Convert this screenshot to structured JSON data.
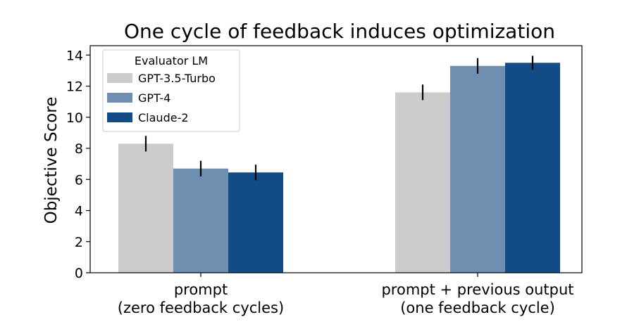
{
  "chart_data": {
    "type": "bar",
    "title": "One cycle of feedback induces optimization",
    "xlabel": "",
    "ylabel": "Objective Score",
    "ylim": [
      0,
      14.6
    ],
    "yticks": [
      0,
      2,
      4,
      6,
      8,
      10,
      12,
      14
    ],
    "grid": false,
    "legend_position": "top-left",
    "legend_title": "Evaluator LM",
    "categories": [
      [
        "prompt",
        "(zero feedback cycles)"
      ],
      [
        "prompt + previous output",
        "(one feedback cycle)"
      ]
    ],
    "series": [
      {
        "name": "GPT-3.5-Turbo",
        "color": "#cccccc",
        "values": [
          8.3,
          11.6
        ],
        "errors": [
          0.5,
          0.5
        ]
      },
      {
        "name": "GPT-4",
        "color": "#6f8fb0",
        "values": [
          6.7,
          13.3
        ],
        "errors": [
          0.5,
          0.5
        ]
      },
      {
        "name": "Claude-2",
        "color": "#134b87",
        "values": [
          6.45,
          13.5
        ],
        "errors": [
          0.5,
          0.45
        ]
      }
    ]
  }
}
